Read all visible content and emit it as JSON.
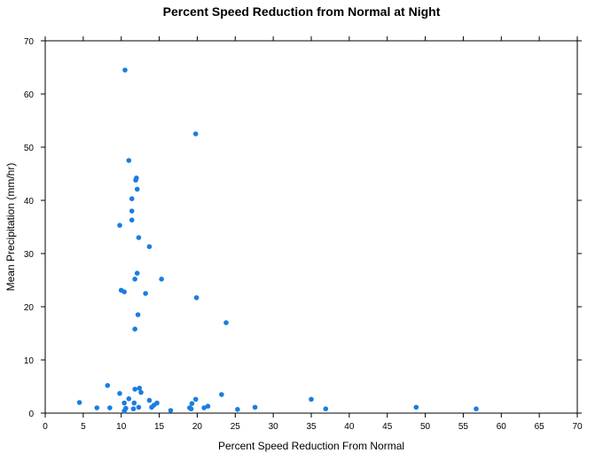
{
  "chart_data": {
    "type": "scatter",
    "title": "Percent Speed Reduction from Normal at Night",
    "xlabel": "Percent Speed Reduction From Normal",
    "ylabel": "Mean Precipitation (mm/hr)",
    "xlim": [
      0,
      70
    ],
    "ylim": [
      0,
      70
    ],
    "xticks": [
      0,
      5,
      10,
      15,
      20,
      25,
      30,
      35,
      40,
      45,
      50,
      55,
      60,
      65,
      70
    ],
    "yticks": [
      0,
      10,
      20,
      30,
      40,
      50,
      60,
      70
    ],
    "grid": false,
    "point_color": "#1a7de0",
    "points": [
      [
        10.5,
        64.5
      ],
      [
        19.8,
        52.5
      ],
      [
        11.0,
        47.5
      ],
      [
        12.0,
        44.2
      ],
      [
        11.9,
        43.8
      ],
      [
        12.1,
        42.1
      ],
      [
        11.4,
        40.3
      ],
      [
        11.4,
        38.0
      ],
      [
        11.4,
        36.3
      ],
      [
        9.8,
        35.3
      ],
      [
        12.3,
        33.0
      ],
      [
        13.7,
        31.3
      ],
      [
        12.1,
        26.3
      ],
      [
        11.8,
        25.2
      ],
      [
        15.3,
        25.2
      ],
      [
        10.0,
        23.1
      ],
      [
        10.4,
        22.8
      ],
      [
        13.2,
        22.5
      ],
      [
        19.9,
        21.7
      ],
      [
        12.2,
        18.5
      ],
      [
        23.8,
        17.0
      ],
      [
        11.8,
        15.8
      ],
      [
        8.2,
        5.2
      ],
      [
        11.8,
        4.5
      ],
      [
        12.4,
        4.7
      ],
      [
        9.8,
        3.7
      ],
      [
        12.6,
        3.9
      ],
      [
        23.2,
        3.5
      ],
      [
        11.0,
        2.7
      ],
      [
        13.7,
        2.4
      ],
      [
        19.8,
        2.6
      ],
      [
        35.0,
        2.6
      ],
      [
        4.5,
        2.0
      ],
      [
        10.4,
        1.9
      ],
      [
        11.7,
        1.9
      ],
      [
        14.7,
        1.9
      ],
      [
        19.3,
        1.8
      ],
      [
        14.3,
        1.5
      ],
      [
        21.4,
        1.3
      ],
      [
        6.8,
        1.0
      ],
      [
        8.5,
        1.0
      ],
      [
        12.3,
        1.1
      ],
      [
        14.0,
        1.1
      ],
      [
        19.0,
        1.0
      ],
      [
        20.9,
        1.0
      ],
      [
        27.6,
        1.1
      ],
      [
        48.8,
        1.1
      ],
      [
        10.6,
        0.9
      ],
      [
        11.6,
        0.8
      ],
      [
        19.2,
        0.8
      ],
      [
        25.3,
        0.7
      ],
      [
        36.9,
        0.8
      ],
      [
        56.7,
        0.8
      ],
      [
        10.4,
        0.4
      ],
      [
        16.5,
        0.5
      ]
    ]
  }
}
